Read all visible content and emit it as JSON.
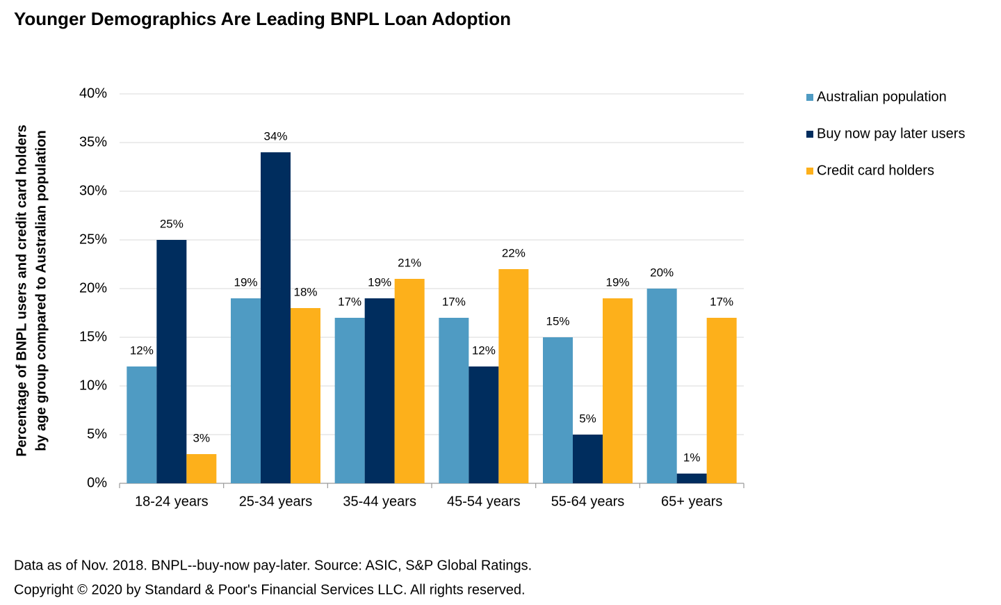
{
  "chart_data": {
    "type": "bar",
    "title": "Younger Demographics Are Leading BNPL Loan Adoption",
    "ylabel": [
      "Percentage of BNPL users and credit card holders",
      "by age group compared to Australian population"
    ],
    "categories": [
      "18-24 years",
      "25-34 years",
      "35-44 years",
      "45-54 years",
      "55-64 years",
      "65+ years"
    ],
    "series": [
      {
        "name": "Australian population",
        "color": "#4f9bc3",
        "values": [
          12,
          19,
          17,
          17,
          15,
          20
        ],
        "value_labels": [
          "12%",
          "19%",
          "17%",
          "17%",
          "15%",
          "20%"
        ]
      },
      {
        "name": "Buy now pay later users",
        "color": "#002d5e",
        "values": [
          25,
          34,
          19,
          12,
          5,
          1
        ],
        "value_labels": [
          "25%",
          "34%",
          "19%",
          "12%",
          "5%",
          "1%"
        ]
      },
      {
        "name": "Credit card holders",
        "color": "#fdb01b",
        "values": [
          3,
          18,
          21,
          22,
          19,
          17
        ],
        "value_labels": [
          "3%",
          "18%",
          "21%",
          "22%",
          "19%",
          "17%"
        ]
      }
    ],
    "ylim": [
      0,
      40
    ],
    "yticks": [
      {
        "value": 0,
        "label": "0%"
      },
      {
        "value": 5,
        "label": "5%"
      },
      {
        "value": 10,
        "label": "10%"
      },
      {
        "value": 15,
        "label": "15%"
      },
      {
        "value": 20,
        "label": "20%"
      },
      {
        "value": 25,
        "label": "25%"
      },
      {
        "value": 30,
        "label": "30%"
      },
      {
        "value": 35,
        "label": "35%"
      },
      {
        "value": 40,
        "label": "40%"
      }
    ],
    "grid": true,
    "legend": "right",
    "footnotes": [
      "Data as of Nov. 2018. BNPL--buy-now pay-later. Source: ASIC, S&P Global Ratings.",
      "Copyright © 2020 by Standard & Poor's Financial Services LLC. All rights reserved."
    ]
  }
}
